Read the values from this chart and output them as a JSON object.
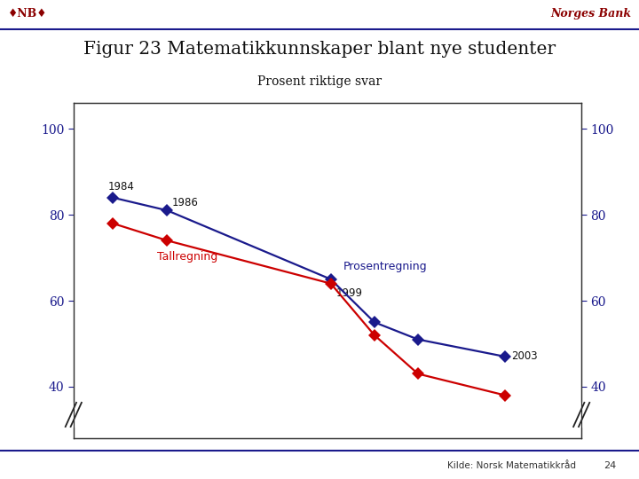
{
  "title": "Figur 23 Matematikkunnskaper blant nye studenter",
  "subtitle": "Prosent riktige svar",
  "prosentregning_x_pos": [
    0.0,
    0.25,
    1.0,
    1.2,
    1.4,
    1.8
  ],
  "prosentregning_y": [
    84,
    81,
    65,
    55,
    51,
    47
  ],
  "tallregning_x_pos": [
    0.0,
    0.25,
    1.0,
    1.2,
    1.4,
    1.8
  ],
  "tallregning_y": [
    78,
    74,
    64,
    52,
    43,
    38
  ],
  "color_prosent": "#1a1a8c",
  "color_tall": "#cc0000",
  "ylim": [
    28,
    106
  ],
  "yticks": [
    40,
    60,
    80,
    100
  ],
  "yticklabels": [
    "40",
    "60",
    "80",
    "100"
  ],
  "background_color": "#FFFFFF",
  "header_bg": "#f5f5f5",
  "header_line_color": "#1a1a8c",
  "header_text": "Norges Bank",
  "header_logo": "♦NB♦",
  "header_text_color": "#8B0000",
  "title_color": "#111111",
  "subtitle_color": "#111111",
  "footer_text": "Kilde: Norsk Matematikkråd",
  "footer_line_color": "#1a1a8c",
  "page_num": "24",
  "label_prosent": "Prosentregning",
  "label_tall": "Tallregning",
  "tick_color": "#1a1a8c",
  "spine_color": "#333333",
  "anno_year_color": "#111111",
  "anno_prosent_color": "#1a1a8c",
  "anno_tall_color": "#cc0000"
}
